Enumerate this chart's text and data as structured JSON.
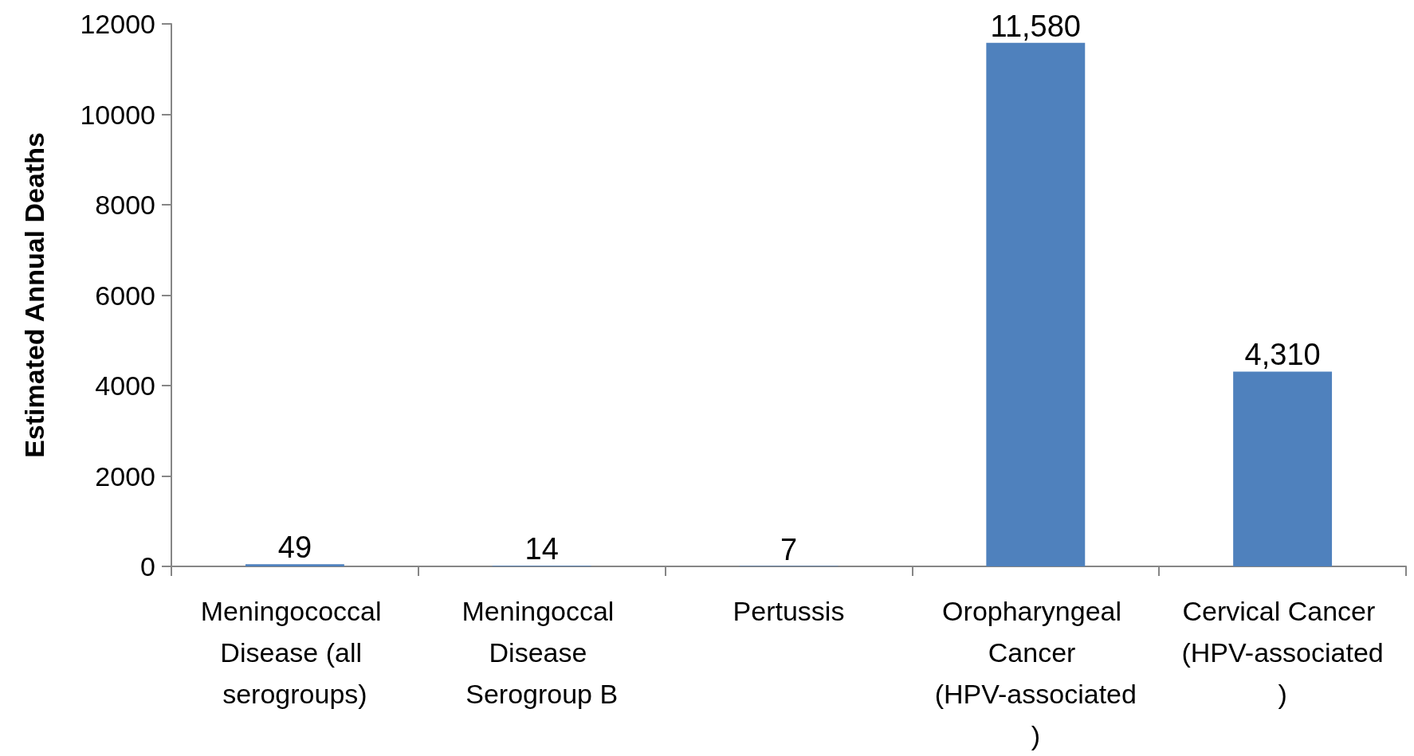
{
  "chart_data": {
    "type": "bar",
    "ylabel": "Estimated Annual Deaths",
    "categories": [
      "Meningococcal Disease (all serogroups)",
      "Meningoccal Disease Serogroup B",
      "Pertussis",
      "Oropharyngeal Cancer (HPV-associated)",
      "Cervical Cancer (HPV-associated)"
    ],
    "values": [
      49,
      14,
      7,
      11580,
      4310
    ],
    "value_labels": [
      "49",
      "14",
      "7",
      "11,580",
      "4,310"
    ],
    "color": "#4f81bd",
    "ylim": [
      0,
      12000
    ],
    "yticks": [
      0,
      2000,
      4000,
      6000,
      8000,
      10000,
      12000
    ],
    "grid": false
  }
}
